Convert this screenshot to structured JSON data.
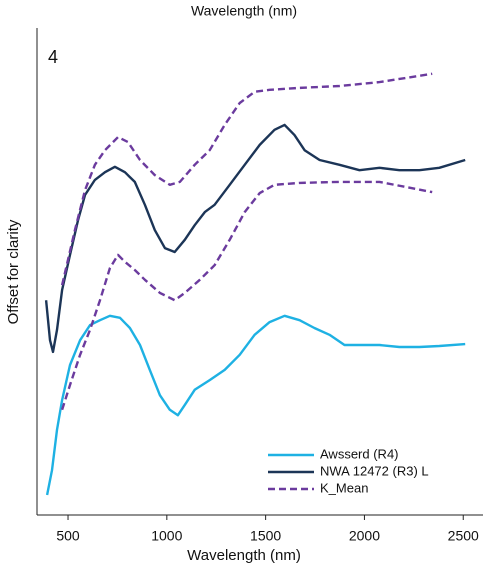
{
  "chart_data": {
    "type": "line",
    "title": "Wavelength (nm)",
    "x_label": "Wavelength (nm)",
    "y_label": "Offset for clarity",
    "annotation": "4",
    "xlim": [
      343,
      2600
    ],
    "ylim": [
      0,
      100
    ],
    "xticks": [
      500,
      1000,
      1500,
      2000,
      2500
    ],
    "legend": "lower right",
    "series": [
      {
        "name": "Awsserd (R4)",
        "color": "#1eb1e3",
        "dash": false,
        "x": [
          394,
          419,
          444,
          470,
          510,
          561,
          611,
          662,
          712,
          763,
          813,
          864,
          914,
          965,
          1015,
          1056,
          1091,
          1141,
          1217,
          1293,
          1369,
          1444,
          1520,
          1596,
          1672,
          1747,
          1823,
          1899,
          1975,
          2076,
          2177,
          2278,
          2379,
          2510
        ],
        "values": [
          4.1,
          9.2,
          17.5,
          23.6,
          30.8,
          35.9,
          39.0,
          40.0,
          40.9,
          40.5,
          38.4,
          34.9,
          29.8,
          24.6,
          21.6,
          20.5,
          22.6,
          25.7,
          27.7,
          29.8,
          32.9,
          37.0,
          39.6,
          40.9,
          40.0,
          38.4,
          37.0,
          34.9,
          34.9,
          34.9,
          34.5,
          34.5,
          34.7,
          35.1
        ]
      },
      {
        "name": "NWA 12472 (R3) L",
        "color": "#1c3557",
        "dash": false,
        "x": [
          389,
          409,
          424,
          444,
          470,
          510,
          551,
          586,
          636,
          687,
          737,
          788,
          838,
          889,
          939,
          990,
          1040,
          1091,
          1141,
          1192,
          1242,
          1318,
          1394,
          1470,
          1545,
          1596,
          1646,
          1697,
          1773,
          1874,
          1975,
          2076,
          2177,
          2278,
          2379,
          2510
        ],
        "values": [
          44.1,
          35.9,
          33.5,
          38.0,
          46.2,
          53.4,
          60.6,
          65.7,
          68.8,
          70.4,
          71.5,
          70.4,
          68.4,
          63.7,
          58.5,
          54.8,
          54.0,
          56.5,
          59.5,
          62.2,
          63.7,
          67.8,
          71.9,
          76.0,
          79.1,
          80.1,
          78.0,
          74.9,
          72.9,
          71.9,
          70.8,
          71.3,
          70.8,
          70.8,
          71.3,
          72.9
        ]
      },
      {
        "name": "K_Mean",
        "color": "#6b3b9e",
        "dash": true,
        "x": [
          470,
          535,
          586,
          636,
          687,
          753,
          803,
          864,
          939,
          1015,
          1066,
          1141,
          1217,
          1293,
          1369,
          1444,
          1520,
          1672,
          1874,
          2076,
          2343,
          null,
          470,
          510,
          561,
          611,
          662,
          712,
          753,
          788,
          838,
          889,
          965,
          1040,
          1091,
          1167,
          1242,
          1318,
          1394,
          1470,
          1545,
          1672,
          1874,
          2076,
          2343
        ],
        "values": [
          47.2,
          58.5,
          66.7,
          71.9,
          74.9,
          77.6,
          76.6,
          72.9,
          69.8,
          67.8,
          68.4,
          71.9,
          74.9,
          80.1,
          84.6,
          86.9,
          87.3,
          87.7,
          88.1,
          88.9,
          90.6,
          null,
          21.6,
          26.7,
          32.9,
          38.0,
          44.1,
          50.7,
          53.4,
          52.0,
          50.3,
          48.3,
          45.6,
          44.1,
          45.6,
          48.3,
          51.3,
          56.5,
          62.2,
          66.1,
          67.8,
          68.2,
          68.4,
          68.4,
          66.3
        ]
      }
    ]
  }
}
